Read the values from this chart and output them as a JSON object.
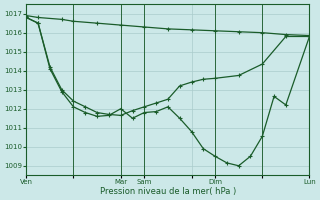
{
  "background_color": "#cce8e8",
  "grid_color": "#aacccc",
  "line_color": "#1a5c2a",
  "marker_color": "#1a5c2a",
  "xlabel": "Pression niveau de la mer( hPa )",
  "ylim": [
    1008.5,
    1017.5
  ],
  "yticks": [
    1009,
    1010,
    1011,
    1012,
    1013,
    1014,
    1015,
    1016,
    1017
  ],
  "xtick_labels": [
    "Ven",
    "",
    "Mar",
    "Sam",
    "",
    "Dim",
    "",
    "Lun"
  ],
  "xtick_positions": [
    0,
    0.333,
    0.667,
    0.833,
    1.167,
    1.333,
    1.667,
    2.0
  ],
  "vlines": [
    0.333,
    0.667,
    0.833,
    1.333,
    1.667,
    2.0
  ],
  "series1_x": [
    0,
    0.083,
    0.25,
    0.333,
    0.5,
    0.667,
    0.833,
    1.0,
    1.167,
    1.333,
    1.5,
    1.667,
    1.833,
    2.0
  ],
  "series1_y": [
    1016.9,
    1016.8,
    1016.7,
    1016.6,
    1016.5,
    1016.4,
    1016.3,
    1016.2,
    1016.15,
    1016.1,
    1016.05,
    1016.0,
    1015.9,
    1015.85
  ],
  "series2_x": [
    0,
    0.083,
    0.167,
    0.25,
    0.333,
    0.417,
    0.5,
    0.583,
    0.667,
    0.75,
    0.833,
    0.917,
    1.0,
    1.083,
    1.167,
    1.25,
    1.333,
    1.5,
    1.667,
    1.833,
    2.0
  ],
  "series2_y": [
    1016.8,
    1016.5,
    1014.2,
    1013.0,
    1012.4,
    1012.1,
    1011.8,
    1011.7,
    1011.65,
    1011.9,
    1012.1,
    1012.3,
    1012.5,
    1013.2,
    1013.4,
    1013.55,
    1013.6,
    1013.75,
    1014.35,
    1015.8,
    1015.8
  ],
  "series3_x": [
    0,
    0.083,
    0.167,
    0.25,
    0.333,
    0.417,
    0.5,
    0.583,
    0.667,
    0.75,
    0.833,
    0.917,
    1.0,
    1.083,
    1.167,
    1.25,
    1.333,
    1.417,
    1.5,
    1.583,
    1.667,
    1.75,
    1.833,
    2.0
  ],
  "series3_y": [
    1016.8,
    1016.5,
    1014.1,
    1012.9,
    1012.1,
    1011.8,
    1011.6,
    1011.65,
    1012.0,
    1011.5,
    1011.8,
    1011.85,
    1012.1,
    1011.5,
    1010.8,
    1009.9,
    1009.5,
    1009.15,
    1009.0,
    1009.5,
    1010.55,
    1012.65,
    1012.2,
    1015.8
  ]
}
